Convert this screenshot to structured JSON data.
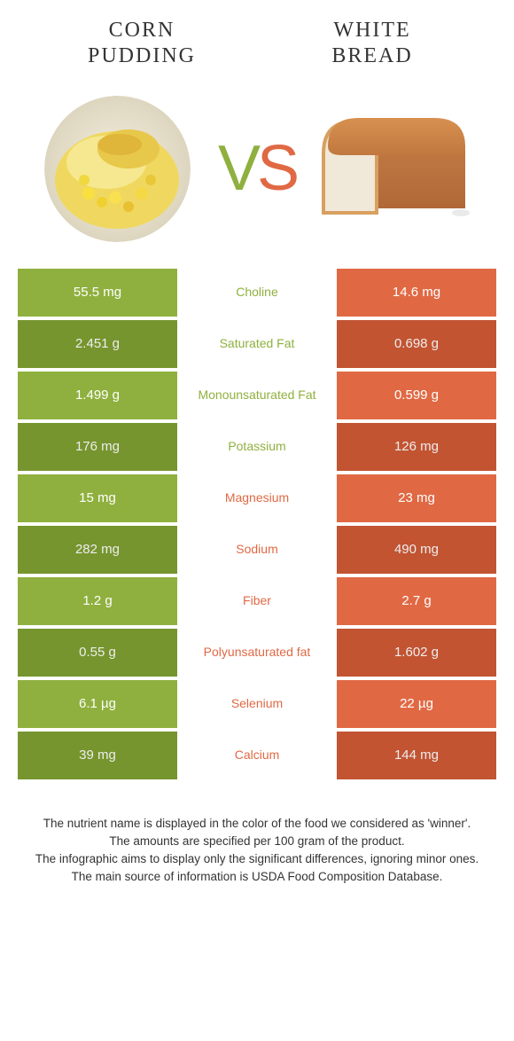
{
  "colors": {
    "green": "#8fb03e",
    "orange": "#e06944",
    "green_dark": "#7fa031",
    "orange_dark": "#d15a36"
  },
  "header": {
    "left_title_line1": "CORN",
    "left_title_line2": "PUDDING",
    "right_title_line1": "WHITE",
    "right_title_line2": "BREAD"
  },
  "vs": {
    "v": "V",
    "s": "S"
  },
  "rows": [
    {
      "left": "55.5 mg",
      "mid": "Choline",
      "right": "14.6 mg",
      "winner": "left"
    },
    {
      "left": "2.451 g",
      "mid": "Saturated Fat",
      "right": "0.698 g",
      "winner": "left"
    },
    {
      "left": "1.499 g",
      "mid": "Monounsaturated Fat",
      "right": "0.599 g",
      "winner": "left"
    },
    {
      "left": "176 mg",
      "mid": "Potassium",
      "right": "126 mg",
      "winner": "left"
    },
    {
      "left": "15 mg",
      "mid": "Magnesium",
      "right": "23 mg",
      "winner": "right"
    },
    {
      "left": "282 mg",
      "mid": "Sodium",
      "right": "490 mg",
      "winner": "right"
    },
    {
      "left": "1.2 g",
      "mid": "Fiber",
      "right": "2.7 g",
      "winner": "right"
    },
    {
      "left": "0.55 g",
      "mid": "Polyunsaturated fat",
      "right": "1.602 g",
      "winner": "right"
    },
    {
      "left": "6.1 µg",
      "mid": "Selenium",
      "right": "22 µg",
      "winner": "right"
    },
    {
      "left": "39 mg",
      "mid": "Calcium",
      "right": "144 mg",
      "winner": "right"
    }
  ],
  "footer": {
    "line1": "The nutrient name is displayed in the color of the food we considered as 'winner'.",
    "line2": "The amounts are specified per 100 gram of the product.",
    "line3": "The infographic aims to display only the significant differences, ignoring minor ones.",
    "line4": "The main source of information is USDA Food Composition Database."
  }
}
